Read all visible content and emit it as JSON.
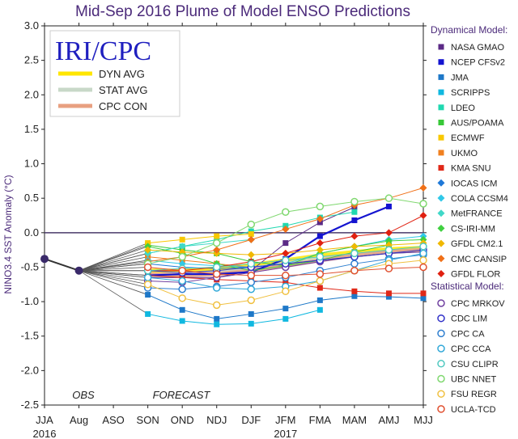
{
  "chart_data": {
    "type": "line",
    "title": "Mid-Sep 2016 Plume of Model ENSO Predictions",
    "ylabel": "NINO3.4 SST Anomaly (°C)",
    "ylim": [
      -2.5,
      3.0
    ],
    "y_ticks": [
      "3.0",
      "2.5",
      "2.0",
      "1.5",
      "1.0",
      "0.5",
      "0.0",
      "-0.5",
      "-1.0",
      "-1.5",
      "-2.0",
      "-2.5"
    ],
    "categories": [
      "JJA",
      "Aug",
      "ASO",
      "SON",
      "OND",
      "NDJ",
      "DJF",
      "JFM",
      "FMA",
      "MAM",
      "AMJ",
      "MJJ"
    ],
    "year_labels": [
      "2016",
      "2017"
    ],
    "period_labels": [
      "OBS",
      "FORECAST"
    ],
    "logo_text": "IRI/CPC",
    "legend": {
      "dynamical_header": "Dynamical Model:",
      "statistical_header": "Statistical Model:"
    },
    "obs": {
      "name": "OBS",
      "values": [
        -0.38,
        -0.55
      ]
    },
    "inset": [
      {
        "name": "DYN AVG",
        "color": "#ffe600"
      },
      {
        "name": "STAT AVG",
        "color": "#c8d8c8"
      },
      {
        "name": "CPC CON",
        "color": "#e8a080"
      }
    ],
    "averages": [
      {
        "name": "DYN AVG",
        "color": "#ffe600",
        "values": [
          null,
          null,
          null,
          -0.55,
          -0.55,
          -0.52,
          -0.47,
          -0.4,
          -0.33,
          -0.28,
          -0.24,
          -0.22
        ]
      },
      {
        "name": "STAT AVG",
        "color": "#c8d8c8",
        "values": [
          null,
          null,
          null,
          -0.62,
          -0.62,
          -0.58,
          -0.52,
          -0.45,
          -0.38,
          -0.32,
          -0.28,
          -0.25
        ]
      },
      {
        "name": "CPC CON",
        "color": "#e8a080",
        "values": [
          null,
          null,
          null,
          -0.6,
          -0.62,
          -0.6,
          -0.55,
          -0.48,
          -0.4,
          -0.33,
          -0.28,
          -0.25
        ]
      }
    ],
    "series": [
      {
        "name": "NASA GMAO",
        "group": "dyn",
        "color": "#5b2a86",
        "marker": "square",
        "values": [
          null,
          null,
          null,
          -0.65,
          -0.65,
          -0.65,
          -0.55,
          -0.15,
          0.15,
          0.37,
          null,
          null
        ]
      },
      {
        "name": "NCEP CFSv2",
        "group": "dyn",
        "color": "#1414d0",
        "marker": "square",
        "values": [
          null,
          null,
          null,
          -0.62,
          -0.6,
          -0.6,
          -0.57,
          -0.38,
          -0.05,
          0.18,
          0.38,
          null
        ]
      },
      {
        "name": "JMA",
        "group": "dyn",
        "color": "#1e78c8",
        "marker": "square",
        "values": [
          null,
          null,
          null,
          -0.9,
          -1.12,
          -1.25,
          -1.18,
          -1.1,
          -0.98,
          -0.92,
          -0.93,
          -0.95
        ]
      },
      {
        "name": "SCRIPPS",
        "group": "dyn",
        "color": "#10b8e0",
        "marker": "square",
        "values": [
          null,
          null,
          null,
          -1.18,
          -1.28,
          -1.33,
          -1.32,
          -1.25,
          -1.12,
          null,
          null,
          null
        ]
      },
      {
        "name": "LDEO",
        "group": "dyn",
        "color": "#20d8b0",
        "marker": "square",
        "values": [
          null,
          null,
          null,
          -0.3,
          -0.2,
          -0.1,
          0.02,
          0.1,
          0.22,
          0.3,
          null,
          null
        ]
      },
      {
        "name": "AUS/POAMA",
        "group": "dyn",
        "color": "#38c838",
        "marker": "square",
        "values": [
          null,
          null,
          null,
          -0.18,
          -0.25,
          -0.3,
          -0.42,
          -0.48,
          -0.4,
          -0.28,
          -0.18,
          null
        ]
      },
      {
        "name": "ECMWF",
        "group": "dyn",
        "color": "#f8c800",
        "marker": "square",
        "values": [
          null,
          null,
          null,
          -0.15,
          -0.1,
          -0.05,
          -0.02,
          null,
          null,
          null,
          null,
          null
        ]
      },
      {
        "name": "UKMO",
        "group": "dyn",
        "color": "#f08020",
        "marker": "square",
        "values": [
          null,
          null,
          null,
          -0.35,
          -0.4,
          -0.45,
          -0.5,
          null,
          null,
          null,
          null,
          null
        ]
      },
      {
        "name": "KMA SNU",
        "group": "dyn",
        "color": "#e02818",
        "marker": "square",
        "values": [
          null,
          null,
          null,
          -0.62,
          -0.65,
          -0.68,
          -0.7,
          -0.72,
          -0.8,
          -0.85,
          -0.88,
          -0.88
        ]
      },
      {
        "name": "IOCAS ICM",
        "group": "dyn",
        "color": "#1e78d8",
        "marker": "diamond",
        "values": [
          null,
          null,
          null,
          -0.45,
          -0.5,
          -0.52,
          -0.5,
          -0.45,
          -0.4,
          -0.35,
          -0.3,
          -0.28
        ]
      },
      {
        "name": "COLA CCSM4",
        "group": "dyn",
        "color": "#30c8e8",
        "marker": "diamond",
        "values": [
          null,
          null,
          null,
          -0.4,
          -0.45,
          -0.48,
          -0.5,
          -0.45,
          -0.3,
          -0.2,
          -0.1,
          -0.05
        ]
      },
      {
        "name": "MetFRANCE",
        "group": "dyn",
        "color": "#40d8c8",
        "marker": "diamond",
        "values": [
          null,
          null,
          null,
          -0.3,
          -0.2,
          -0.15,
          -0.1,
          null,
          null,
          null,
          null,
          null
        ]
      },
      {
        "name": "CS-IRI-MM",
        "group": "dyn",
        "color": "#40d040",
        "marker": "diamond",
        "values": [
          null,
          null,
          null,
          -0.2,
          -0.3,
          -0.45,
          -0.55,
          -0.48,
          -0.3,
          -0.2,
          -0.12,
          -0.1
        ]
      },
      {
        "name": "GFDL CM2.1",
        "group": "dyn",
        "color": "#f0b800",
        "marker": "diamond",
        "values": [
          null,
          null,
          null,
          -0.25,
          -0.28,
          -0.3,
          -0.32,
          -0.3,
          -0.25,
          -0.2,
          -0.18,
          -0.15
        ]
      },
      {
        "name": "CMC CANSIP",
        "group": "dyn",
        "color": "#f07018",
        "marker": "diamond",
        "values": [
          null,
          null,
          null,
          -0.42,
          -0.35,
          -0.25,
          -0.1,
          0.05,
          0.2,
          0.4,
          0.5,
          0.65
        ]
      },
      {
        "name": "GFDL FLOR",
        "group": "dyn",
        "color": "#e02010",
        "marker": "diamond",
        "values": [
          null,
          null,
          null,
          -0.55,
          -0.55,
          -0.5,
          -0.42,
          -0.3,
          -0.15,
          -0.05,
          0.0,
          0.25
        ]
      },
      {
        "name": "CPC MRKOV",
        "group": "stat",
        "color": "#7040a0",
        "marker": "circle",
        "values": [
          null,
          null,
          null,
          -0.7,
          -0.72,
          -0.65,
          -0.58,
          -0.5,
          -0.42,
          -0.35,
          -0.3,
          -0.28
        ]
      },
      {
        "name": "CDC LIM",
        "group": "stat",
        "color": "#3030c8",
        "marker": "circle",
        "values": [
          null,
          null,
          null,
          -0.55,
          -0.58,
          -0.55,
          -0.5,
          -0.45,
          -0.4,
          -0.35,
          -0.3,
          -0.25
        ]
      },
      {
        "name": "CPC CA",
        "group": "stat",
        "color": "#3080d0",
        "marker": "circle",
        "values": [
          null,
          null,
          null,
          -0.8,
          -0.82,
          -0.78,
          -0.72,
          -0.65,
          -0.55,
          -0.45,
          -0.38,
          -0.32
        ]
      },
      {
        "name": "CPC CCA",
        "group": "stat",
        "color": "#30a8d8",
        "marker": "circle",
        "values": [
          null,
          null,
          null,
          -0.65,
          -0.7,
          -0.8,
          -0.82,
          -0.78,
          -0.7,
          -0.55,
          -0.4,
          -0.3
        ]
      },
      {
        "name": "CSU CLIPR",
        "group": "stat",
        "color": "#50c8c0",
        "marker": "circle",
        "values": [
          null,
          null,
          null,
          -0.55,
          -0.52,
          -0.5,
          -0.45,
          -0.4,
          -0.35,
          -0.3,
          -0.25,
          -0.2
        ]
      },
      {
        "name": "UBC NNET",
        "group": "stat",
        "color": "#80d870",
        "marker": "circle",
        "values": [
          null,
          null,
          null,
          -0.45,
          -0.35,
          -0.15,
          0.12,
          0.3,
          0.38,
          0.45,
          0.5,
          0.42
        ]
      },
      {
        "name": "FSU REGR",
        "group": "stat",
        "color": "#f0c040",
        "marker": "circle",
        "values": [
          null,
          null,
          null,
          -0.75,
          -0.95,
          -1.05,
          -0.98,
          -0.85,
          -0.7,
          -0.55,
          -0.45,
          -0.4
        ]
      },
      {
        "name": "UCLA-TCD",
        "group": "stat",
        "color": "#e05030",
        "marker": "circle",
        "values": [
          null,
          null,
          null,
          -0.5,
          -0.55,
          -0.6,
          -0.62,
          -0.62,
          -0.6,
          -0.55,
          -0.52,
          -0.5
        ]
      }
    ]
  }
}
